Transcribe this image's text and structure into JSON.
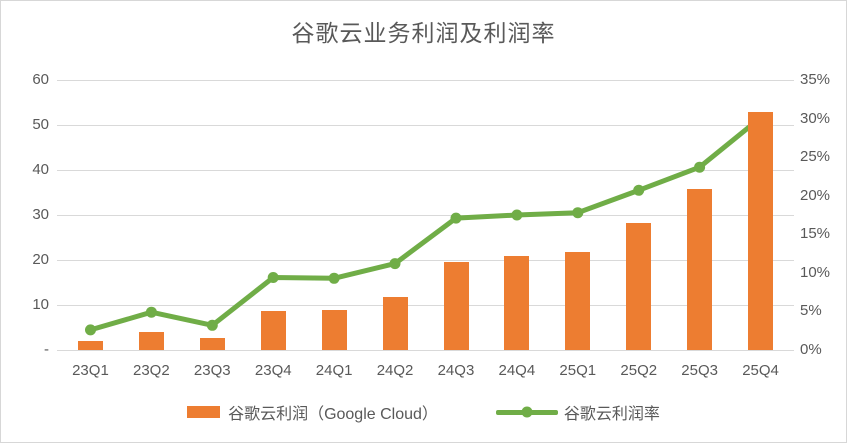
{
  "window": {
    "background": "#ffffff",
    "border_color": "#d7d7d7",
    "text_color": "#595959"
  },
  "chart_data": {
    "type": "combo-bar-line",
    "title": "谷歌云业务利润及利润率",
    "categories": [
      "23Q1",
      "23Q2",
      "23Q3",
      "23Q4",
      "24Q1",
      "24Q2",
      "24Q3",
      "24Q4",
      "25Q1",
      "25Q2",
      "25Q3",
      "25Q4"
    ],
    "series": [
      {
        "name": "谷歌云利润（Google Cloud）",
        "type": "bar",
        "axis": "left",
        "color": "#ED7D31",
        "values": [
          1.9,
          3.9,
          2.7,
          8.6,
          9.0,
          11.7,
          19.5,
          20.9,
          21.8,
          28.3,
          35.9,
          53.0
        ]
      },
      {
        "name": "谷歌云利润率",
        "type": "line",
        "axis": "right",
        "color": "#70AD47",
        "marker": "circle",
        "values": [
          2.6,
          4.9,
          3.2,
          9.4,
          9.3,
          11.2,
          17.1,
          17.5,
          17.8,
          20.7,
          23.7,
          30.1
        ]
      }
    ],
    "axes": {
      "left": {
        "min": 0,
        "max": 60,
        "tick_step": 10,
        "tick_labels": [
          "60",
          "50",
          "40",
          "30",
          "20",
          "10",
          "-"
        ]
      },
      "right": {
        "min": 0,
        "max": 35,
        "tick_step": 5,
        "unit": "%",
        "tick_labels": [
          "35%",
          "30%",
          "25%",
          "20%",
          "15%",
          "10%",
          "5%",
          "0%"
        ]
      }
    },
    "grid": true,
    "grid_color": "#d9d9d9",
    "legend_position": "bottom",
    "legend": [
      "谷歌云利润（Google Cloud）",
      "谷歌云利润率"
    ]
  }
}
